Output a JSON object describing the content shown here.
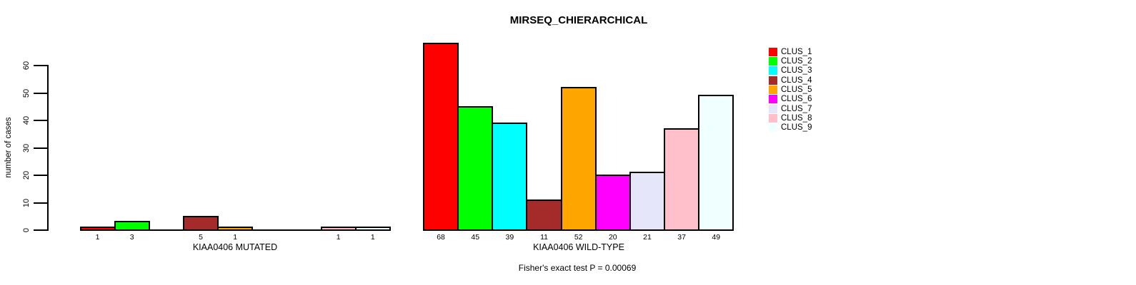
{
  "chart_data": {
    "type": "bar",
    "title": "MIRSEQ_CHIERARCHICAL",
    "ylabel": "number of cases",
    "ylim": [
      0,
      60
    ],
    "yticks": [
      0,
      10,
      20,
      30,
      40,
      50,
      60
    ],
    "grid": false,
    "categories": [
      "CLUS_1",
      "CLUS_2",
      "CLUS_3",
      "CLUS_4",
      "CLUS_5",
      "CLUS_6",
      "CLUS_7",
      "CLUS_8",
      "CLUS_9"
    ],
    "colors": [
      "#FF0000",
      "#00FF00",
      "#00FFFF",
      "#A52A2A",
      "#FFA500",
      "#FF00FF",
      "#E6E6FA",
      "#FFC0CB",
      "#F0FFFF"
    ],
    "bar_border_color": "#000000",
    "panels": [
      {
        "xlabel": "KIAA0406 MUTATED",
        "values": [
          1,
          3,
          0,
          5,
          1,
          0,
          0,
          1,
          1
        ]
      },
      {
        "xlabel": "KIAA0406 WILD-TYPE",
        "values": [
          68,
          45,
          39,
          11,
          52,
          20,
          21,
          37,
          49
        ]
      }
    ],
    "legend": {
      "position": "right",
      "entries": [
        "CLUS_1",
        "CLUS_2",
        "CLUS_3",
        "CLUS_4",
        "CLUS_5",
        "CLUS_6",
        "CLUS_7",
        "CLUS_8",
        "CLUS_9"
      ]
    },
    "annotation": "Fisher's exact test P = 0.00069"
  }
}
